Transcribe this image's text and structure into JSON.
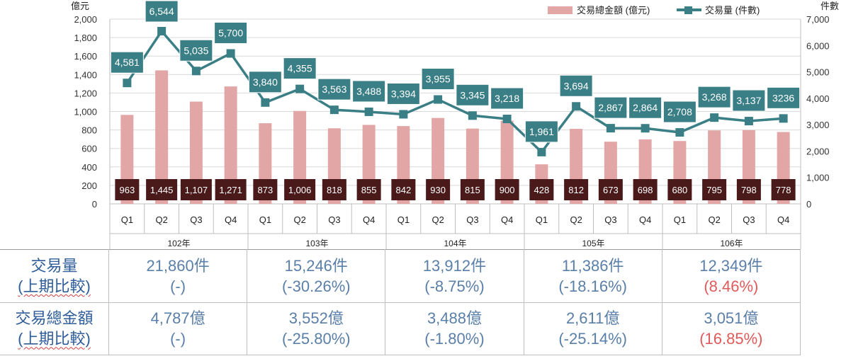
{
  "chart_data": {
    "type": "bar+line",
    "categories": [
      "Q1",
      "Q2",
      "Q3",
      "Q4",
      "Q1",
      "Q2",
      "Q3",
      "Q4",
      "Q1",
      "Q2",
      "Q3",
      "Q4",
      "Q1",
      "Q2",
      "Q3",
      "Q4",
      "Q1",
      "Q2",
      "Q3",
      "Q4"
    ],
    "year_groups": [
      {
        "label": "102年",
        "count": 4
      },
      {
        "label": "103年",
        "count": 4
      },
      {
        "label": "104年",
        "count": 4
      },
      {
        "label": "105年",
        "count": 4
      },
      {
        "label": "106年",
        "count": 4
      }
    ],
    "series": [
      {
        "name": "交易總金額 (億元)",
        "kind": "bar",
        "axis": "left",
        "color": "#e3a6a6",
        "values": [
          963,
          1445,
          1107,
          1271,
          873,
          1006,
          818,
          855,
          842,
          930,
          815,
          900,
          428,
          812,
          673,
          698,
          680,
          795,
          798,
          778
        ],
        "labels": [
          "963",
          "1,445",
          "1,107",
          "1,271",
          "873",
          "1,006",
          "818",
          "855",
          "842",
          "930",
          "815",
          "900",
          "428",
          "812",
          "673",
          "698",
          "680",
          "795",
          "798",
          "778"
        ]
      },
      {
        "name": "交易量 (件數)",
        "kind": "line",
        "axis": "right",
        "color": "#3b7f86",
        "values": [
          4581,
          6544,
          5035,
          5700,
          3840,
          4355,
          3563,
          3488,
          3394,
          3955,
          3345,
          3218,
          1961,
          3694,
          2867,
          2864,
          2708,
          3268,
          3137,
          3236
        ],
        "labels": [
          "4,581",
          "6,544",
          "5,035",
          "5,700",
          "3,840",
          "4,355",
          "3,563",
          "3,488",
          "3,394",
          "3,955",
          "3,345",
          "3,218",
          "1,961",
          "3,694",
          "2,867",
          "2,864",
          "2,708",
          "3,268",
          "3,137",
          "3236"
        ]
      }
    ],
    "left_axis": {
      "unit": "億元",
      "ylim": [
        0,
        2000
      ],
      "ticks": [
        "0",
        "200",
        "400",
        "600",
        "800",
        "1,000",
        "1,200",
        "1,400",
        "1,600",
        "1,800",
        "2,000"
      ]
    },
    "right_axis": {
      "unit": "件數",
      "ylim": [
        0,
        7000
      ],
      "ticks": [
        "0",
        "1,000",
        "2,000",
        "3,000",
        "4,000",
        "5,000",
        "6,000",
        "7,000"
      ]
    },
    "grid": true,
    "legend": "top-right",
    "bar_label_bg": "#4a1a1a",
    "line_label_bg": "#3b7f86"
  },
  "summary": {
    "rows": [
      {
        "head_line1": "交易量",
        "head_line2": "(上期比較)",
        "cells": [
          {
            "main": "21,860件",
            "sub": "(-)",
            "negative": false
          },
          {
            "main": "15,246件",
            "sub": "(-30.26%)",
            "negative": false
          },
          {
            "main": "13,912件",
            "sub": "(-8.75%)",
            "negative": false
          },
          {
            "main": "11,386件",
            "sub": "(-18.16%)",
            "negative": false
          },
          {
            "main": "12,349件",
            "sub": "(8.46%)",
            "negative": true
          }
        ]
      },
      {
        "head_line1": "交易總金額",
        "head_line2": "(上期比較)",
        "cells": [
          {
            "main": "4,787億",
            "sub": "(-)",
            "negative": false
          },
          {
            "main": "3,552億",
            "sub": "(-25.80%)",
            "negative": false
          },
          {
            "main": "3,488億",
            "sub": "(-1.80%)",
            "negative": false
          },
          {
            "main": "2,611億",
            "sub": "(-25.14%)",
            "negative": false
          },
          {
            "main": "3,051億",
            "sub": "(16.85%)",
            "negative": true
          }
        ]
      }
    ]
  }
}
